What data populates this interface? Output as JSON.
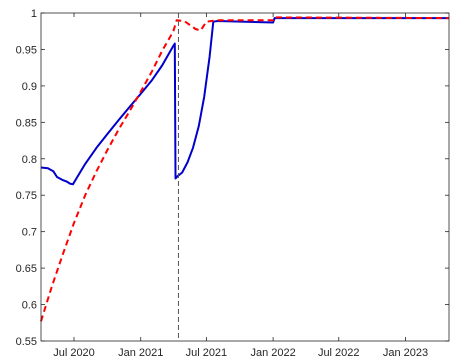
{
  "chart_data": {
    "type": "line",
    "title": "",
    "xlabel": "",
    "ylabel": "",
    "x_range": [
      "2020-04-01",
      "2023-05-01"
    ],
    "ylim": [
      0.55,
      1.0
    ],
    "yticks": [
      0.55,
      0.6,
      0.65,
      0.7,
      0.75,
      0.8,
      0.85,
      0.9,
      0.95,
      1.0
    ],
    "ytick_labels": [
      "0.55",
      "0.6",
      "0.65",
      "0.7",
      "0.75",
      "0.8",
      "0.85",
      "0.9",
      "0.95",
      "1"
    ],
    "xticks": [
      "2020-07-01",
      "2021-01-01",
      "2021-07-01",
      "2022-01-01",
      "2022-07-01",
      "2023-01-01"
    ],
    "xtick_labels": [
      "Jul 2020",
      "Jan 2021",
      "Jul 2021",
      "Jan 2022",
      "Jul 2022",
      "Jan 2023"
    ],
    "grid": false,
    "legend": false,
    "annotations": [
      {
        "type": "vline",
        "x": "2021-04-15",
        "style": "dashed",
        "color": "#555555"
      }
    ],
    "series": [
      {
        "color": "#0000cc",
        "style": "solid",
        "points": [
          [
            "2020-04-01",
            0.788
          ],
          [
            "2020-04-20",
            0.787
          ],
          [
            "2020-05-05",
            0.783
          ],
          [
            "2020-05-15",
            0.775
          ],
          [
            "2020-05-30",
            0.771
          ],
          [
            "2020-06-10",
            0.769
          ],
          [
            "2020-06-20",
            0.766
          ],
          [
            "2020-06-28",
            0.765
          ],
          [
            "2020-07-10",
            0.775
          ],
          [
            "2020-08-01",
            0.793
          ],
          [
            "2020-09-01",
            0.815
          ],
          [
            "2020-10-01",
            0.834
          ],
          [
            "2020-11-01",
            0.853
          ],
          [
            "2020-12-01",
            0.871
          ],
          [
            "2021-01-01",
            0.889
          ],
          [
            "2021-02-01",
            0.908
          ],
          [
            "2021-03-01",
            0.928
          ],
          [
            "2021-04-01",
            0.955
          ],
          [
            "2021-04-05",
            0.958
          ],
          [
            "2021-04-07",
            0.773
          ],
          [
            "2021-04-12",
            0.776
          ],
          [
            "2021-04-25",
            0.781
          ],
          [
            "2021-05-10",
            0.795
          ],
          [
            "2021-05-25",
            0.815
          ],
          [
            "2021-06-10",
            0.845
          ],
          [
            "2021-06-25",
            0.885
          ],
          [
            "2021-07-10",
            0.94
          ],
          [
            "2021-07-20",
            0.988
          ],
          [
            "2021-08-01",
            0.989
          ],
          [
            "2022-01-01",
            0.987
          ],
          [
            "2022-01-05",
            0.993
          ],
          [
            "2023-05-01",
            0.993
          ]
        ]
      },
      {
        "color": "#ff0000",
        "style": "dashed",
        "points": [
          [
            "2020-04-01",
            0.577
          ],
          [
            "2020-05-01",
            0.625
          ],
          [
            "2020-06-01",
            0.67
          ],
          [
            "2020-07-01",
            0.712
          ],
          [
            "2020-08-01",
            0.75
          ],
          [
            "2020-09-01",
            0.783
          ],
          [
            "2020-10-01",
            0.812
          ],
          [
            "2020-11-01",
            0.84
          ],
          [
            "2020-12-01",
            0.865
          ],
          [
            "2021-01-01",
            0.892
          ],
          [
            "2021-02-01",
            0.92
          ],
          [
            "2021-03-01",
            0.948
          ],
          [
            "2021-04-01",
            0.975
          ],
          [
            "2021-04-10",
            0.99
          ],
          [
            "2021-05-01",
            0.989
          ],
          [
            "2021-06-01",
            0.978
          ],
          [
            "2021-06-15",
            0.976
          ],
          [
            "2021-07-01",
            0.988
          ],
          [
            "2021-08-01",
            0.99
          ],
          [
            "2022-01-01",
            0.99
          ],
          [
            "2022-01-05",
            0.994
          ],
          [
            "2023-05-01",
            0.993
          ]
        ]
      }
    ]
  }
}
